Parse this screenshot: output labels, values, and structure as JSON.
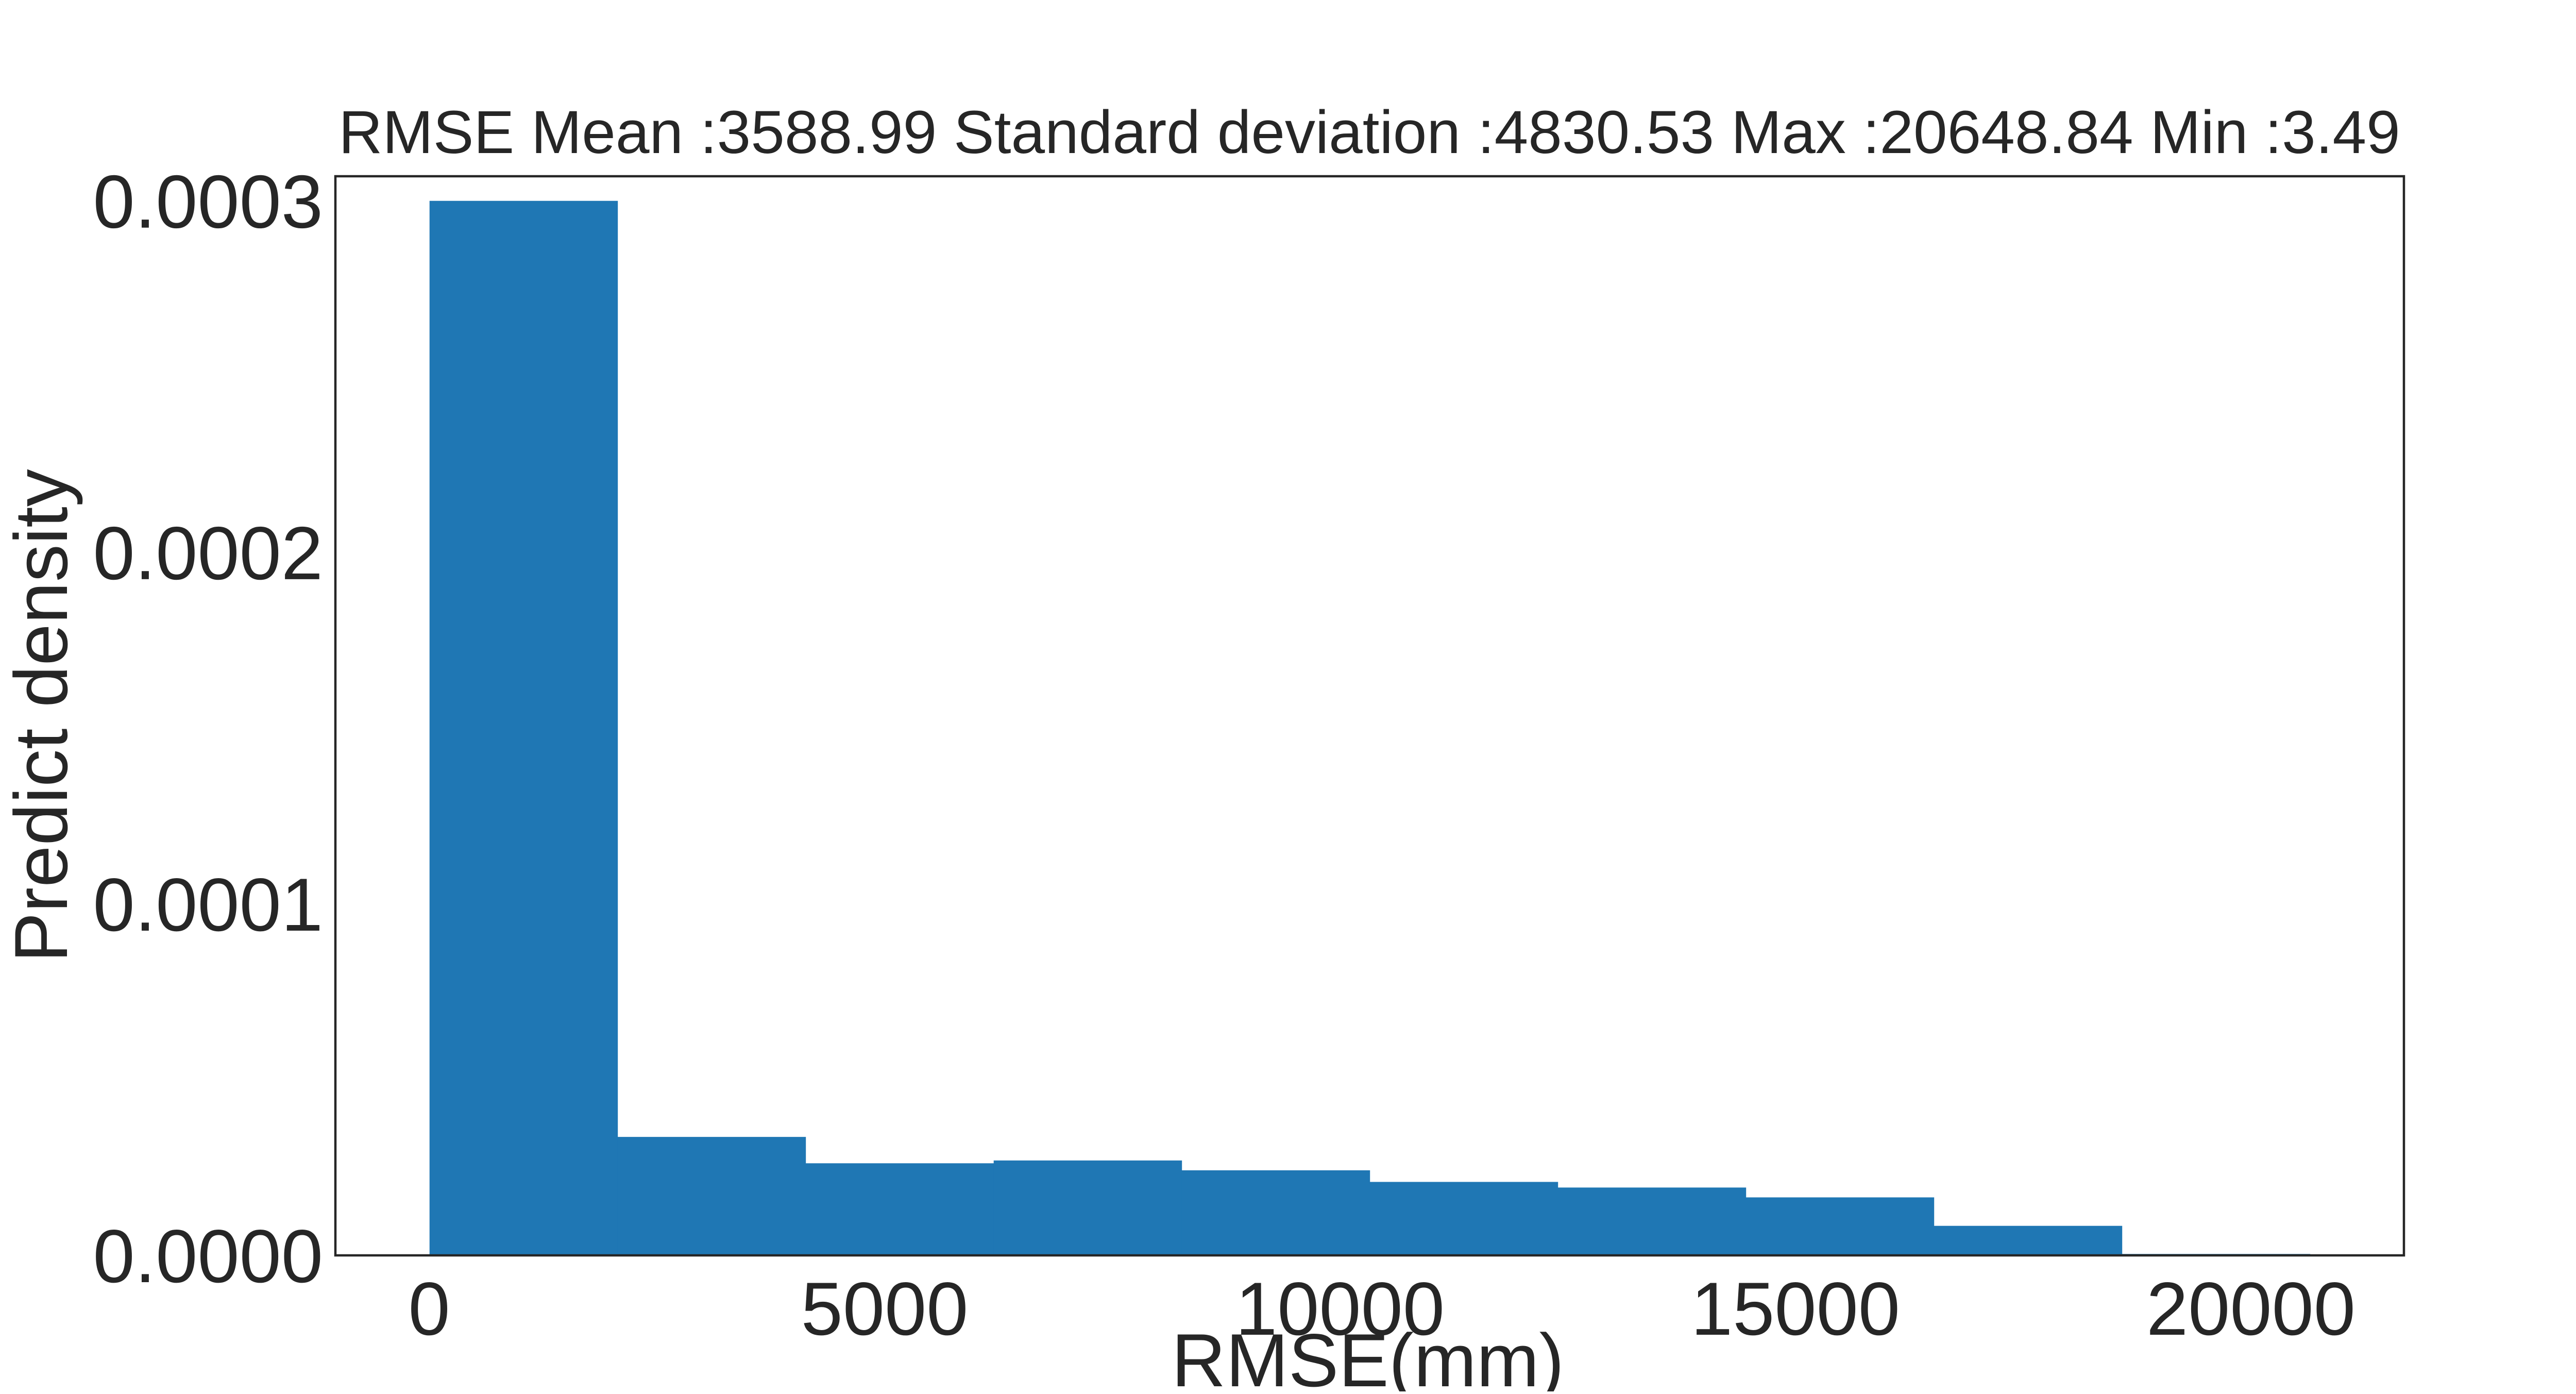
{
  "chart_data": {
    "type": "bar",
    "subtype": "histogram",
    "title": "RMSE Mean :3588.99 Standard deviation :4830.53 Max :20648.84 Min :3.49",
    "xlabel": "RMSE(mm)",
    "ylabel": "Predict density",
    "xlim": [
      -1030,
      21680
    ],
    "ylim": [
      0.0,
      0.000307
    ],
    "x_ticks": [
      {
        "value": 0,
        "label": "0"
      },
      {
        "value": 5000,
        "label": "5000"
      },
      {
        "value": 10000,
        "label": "10000"
      },
      {
        "value": 15000,
        "label": "15000"
      },
      {
        "value": 20000,
        "label": "20000"
      }
    ],
    "y_ticks": [
      {
        "value": 0.0,
        "label": "0.0000"
      },
      {
        "value": 0.0001,
        "label": "0.0001"
      },
      {
        "value": 0.0002,
        "label": "0.0002"
      },
      {
        "value": 0.0003,
        "label": "0.0003"
      }
    ],
    "grid": false,
    "bar_color": "#1f77b4",
    "bins": [
      {
        "x0": 3.49,
        "x1": 2068.02,
        "density": 0.0003
      },
      {
        "x0": 2068.02,
        "x1": 4132.56,
        "density": 3.37e-05
      },
      {
        "x0": 4132.56,
        "x1": 6197.09,
        "density": 2.62e-05
      },
      {
        "x0": 6197.09,
        "x1": 8261.63,
        "density": 2.7e-05
      },
      {
        "x0": 8261.63,
        "x1": 10326.16,
        "density": 2.42e-05
      },
      {
        "x0": 10326.16,
        "x1": 12390.7,
        "density": 2.09e-05
      },
      {
        "x0": 12390.7,
        "x1": 14455.23,
        "density": 1.93e-05
      },
      {
        "x0": 14455.23,
        "x1": 16519.77,
        "density": 1.65e-05
      },
      {
        "x0": 16519.77,
        "x1": 18584.3,
        "density": 8.4e-06
      },
      {
        "x0": 18584.3,
        "x1": 20648.84,
        "density": 4e-07
      }
    ]
  }
}
